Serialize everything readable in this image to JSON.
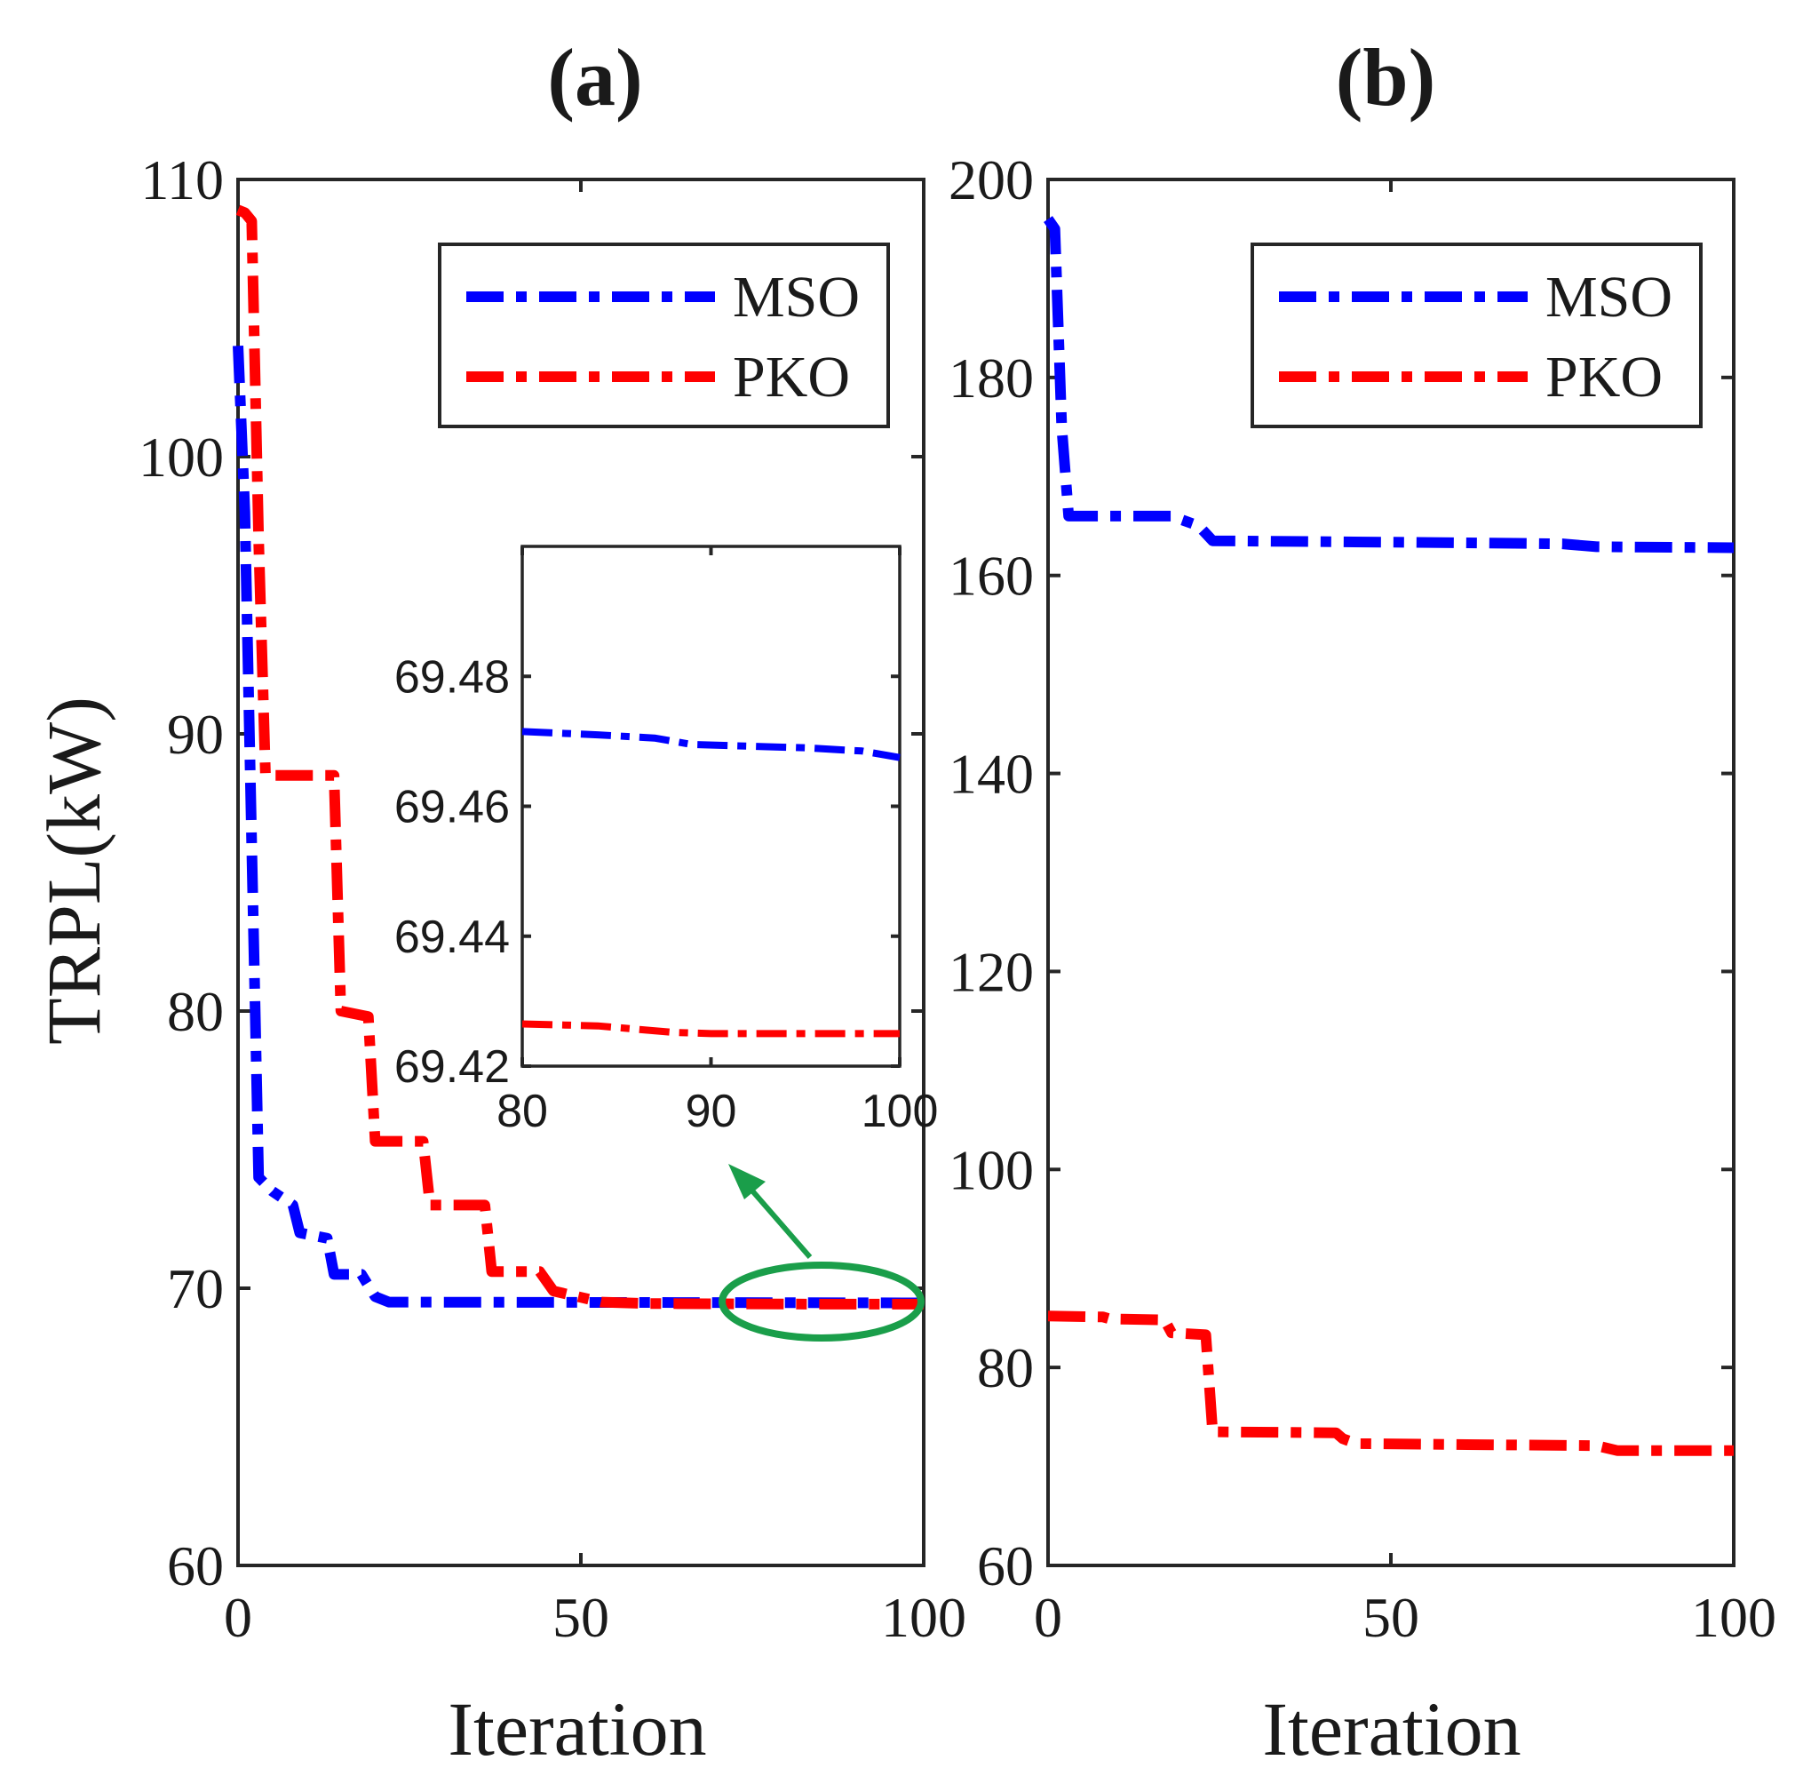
{
  "chart_data": [
    {
      "panel": "(a)",
      "type": "line",
      "title": "(a)",
      "xlabel": "Iteration",
      "ylabel": "TRPL(kW)",
      "xlim": [
        0,
        100
      ],
      "ylim": [
        60,
        110
      ],
      "xticks": [
        0,
        50,
        100
      ],
      "yticks": [
        60,
        70,
        80,
        90,
        100,
        110
      ],
      "legend": "top-right",
      "series": [
        {
          "name": "MSO",
          "color": "#0000ff",
          "x": [
            0,
            1,
            2,
            3,
            5,
            8,
            9,
            13,
            14,
            18,
            20,
            22,
            100
          ],
          "y": [
            104,
            98,
            86,
            74,
            73.5,
            73,
            72,
            71.8,
            70.5,
            70.5,
            69.7,
            69.5,
            69.47
          ]
        },
        {
          "name": "PKO",
          "color": "#ff0000",
          "x": [
            0,
            1,
            2,
            3,
            4,
            5,
            14,
            15,
            19,
            20,
            27,
            28,
            36,
            37,
            44,
            46,
            53,
            60,
            80,
            100
          ],
          "y": [
            108.9,
            108.8,
            108.5,
            97,
            88.5,
            88.5,
            88.5,
            80,
            79.8,
            75.3,
            75.3,
            73,
            73,
            70.6,
            70.6,
            69.9,
            69.5,
            69.45,
            69.43,
            69.425
          ]
        }
      ],
      "annotations": [
        {
          "type": "ellipse",
          "color": "#1a9e4a",
          "around_x": [
            70,
            100
          ],
          "around_y": 69.45
        },
        {
          "type": "arrow",
          "color": "#1a9e4a",
          "from": "ellipse",
          "to": "inset"
        }
      ],
      "inset": {
        "xlim": [
          80,
          100
        ],
        "ylim": [
          69.42,
          69.5
        ],
        "xticks": [
          80,
          90,
          100
        ],
        "yticks": [
          69.42,
          69.44,
          69.46,
          69.48
        ],
        "series": [
          {
            "name": "MSO",
            "color": "#0000ff",
            "x": [
              80,
              84,
              87,
              89,
              95,
              98,
              100
            ],
            "y": [
              69.4715,
              69.471,
              69.4705,
              69.4695,
              69.469,
              69.4685,
              69.4675
            ]
          },
          {
            "name": "PKO",
            "color": "#ff0000",
            "x": [
              80,
              84,
              88,
              90,
              100
            ],
            "y": [
              69.4265,
              69.4262,
              69.4252,
              69.425,
              69.425
            ]
          }
        ]
      }
    },
    {
      "panel": "(b)",
      "type": "line",
      "title": "(b)",
      "xlabel": "Iteration",
      "ylabel": "",
      "xlim": [
        0,
        100
      ],
      "ylim": [
        60,
        200
      ],
      "xticks": [
        0,
        50,
        100
      ],
      "yticks": [
        60,
        80,
        100,
        120,
        140,
        160,
        180,
        200
      ],
      "legend": "top-right",
      "series": [
        {
          "name": "MSO",
          "color": "#0000ff",
          "x": [
            0,
            1,
            2,
            3,
            18,
            22,
            24,
            60,
            75,
            80,
            100
          ],
          "y": [
            196,
            195,
            175,
            166,
            166,
            165,
            163.5,
            163.3,
            163.2,
            162.9,
            162.8
          ]
        },
        {
          "name": "PKO",
          "color": "#ff0000",
          "x": [
            0,
            8,
            9,
            17,
            18,
            23,
            24,
            42,
            43,
            45,
            80,
            83,
            100
          ],
          "y": [
            85.2,
            85.1,
            84.9,
            84.8,
            83.5,
            83.3,
            73.5,
            73.4,
            72.8,
            72.3,
            72.1,
            71.6,
            71.6
          ]
        }
      ]
    }
  ]
}
